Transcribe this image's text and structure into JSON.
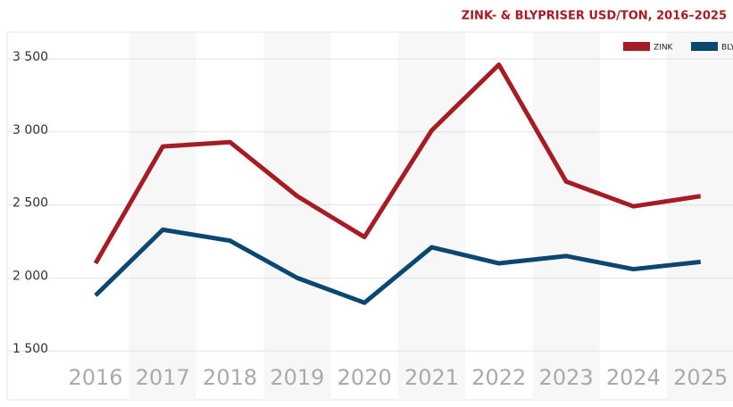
{
  "chart_data": {
    "type": "line",
    "title": "ZINK- & BLYPRISER USD/TON, 2016–2025",
    "categories": [
      "2016",
      "2017",
      "2018",
      "2019",
      "2020",
      "2021",
      "2022",
      "2023",
      "2024",
      "2025"
    ],
    "series": [
      {
        "name": "ZINK",
        "color": "#a51c24",
        "values": [
          2100,
          2900,
          2930,
          2560,
          2280,
          3010,
          3460,
          2660,
          2490,
          2560
        ]
      },
      {
        "name": "BLY",
        "color": "#0b4870",
        "values": [
          1880,
          2330,
          2255,
          2000,
          1830,
          2210,
          2100,
          2150,
          2060,
          2110
        ]
      }
    ],
    "ylim": [
      1165,
      3683
    ],
    "yticks": [
      {
        "value": 1500,
        "label": "1 500"
      },
      {
        "value": 2000,
        "label": "2 000"
      },
      {
        "value": 2500,
        "label": "2 500"
      },
      {
        "value": 3000,
        "label": "3 000"
      },
      {
        "value": 3500,
        "label": "3 500"
      }
    ],
    "grid": true,
    "legend": "top-right"
  }
}
